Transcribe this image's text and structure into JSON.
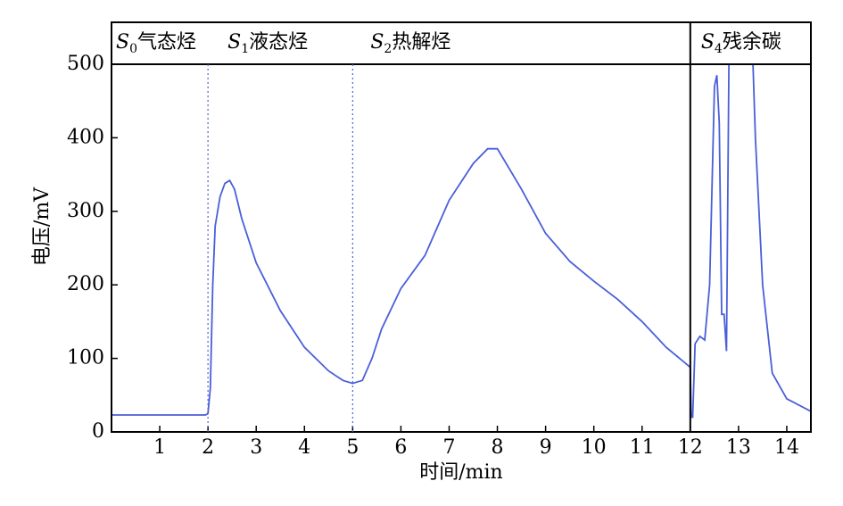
{
  "chart_data": {
    "type": "line",
    "x_label": "时间/min",
    "y_label": "电压/mV",
    "xlim": [
      0,
      14.5
    ],
    "ylim": [
      0,
      557
    ],
    "xticks": [
      1,
      2,
      3,
      4,
      5,
      6,
      7,
      8,
      9,
      10,
      11,
      12,
      13,
      14
    ],
    "yticks": [
      0,
      100,
      200,
      300,
      400,
      500
    ],
    "boundaries": [
      2,
      5,
      12
    ],
    "regions": [
      {
        "symbol": "S",
        "subscript": "0",
        "name": "气态烃"
      },
      {
        "symbol": "S",
        "subscript": "1",
        "name": "液态烃"
      },
      {
        "symbol": "S",
        "subscript": "2",
        "name": "热解烃"
      },
      {
        "symbol": "S",
        "subscript": "4",
        "name": "残余碳"
      }
    ],
    "series": [
      {
        "color": "#4a5fd8",
        "x": [
          0,
          1,
          1.95,
          2.0,
          2.05,
          2.1,
          2.15,
          2.25,
          2.35,
          2.45,
          2.55,
          2.7,
          3.0,
          3.5,
          4.0,
          4.5,
          4.8,
          5.0,
          5.2,
          5.4,
          5.6,
          6.0,
          6.5,
          7.0,
          7.5,
          7.8,
          8.0,
          8.5,
          9.0,
          9.5,
          10.0,
          10.5,
          11.0,
          11.5,
          12.0,
          12.02,
          12.05,
          12.1,
          12.2,
          12.3,
          12.4,
          12.5,
          12.55,
          12.6,
          12.65,
          12.7,
          12.75,
          12.8,
          13.3,
          13.35,
          13.5,
          13.7,
          14.0,
          14.5
        ],
        "values": [
          23,
          23,
          23,
          25,
          60,
          200,
          280,
          320,
          338,
          342,
          330,
          290,
          230,
          165,
          115,
          83,
          70,
          66,
          70,
          100,
          140,
          195,
          240,
          315,
          365,
          385,
          385,
          330,
          270,
          232,
          205,
          180,
          150,
          115,
          88,
          20,
          20,
          120,
          130,
          125,
          200,
          470,
          485,
          420,
          160,
          160,
          110,
          500,
          500,
          400,
          200,
          80,
          45,
          28
        ]
      }
    ]
  }
}
